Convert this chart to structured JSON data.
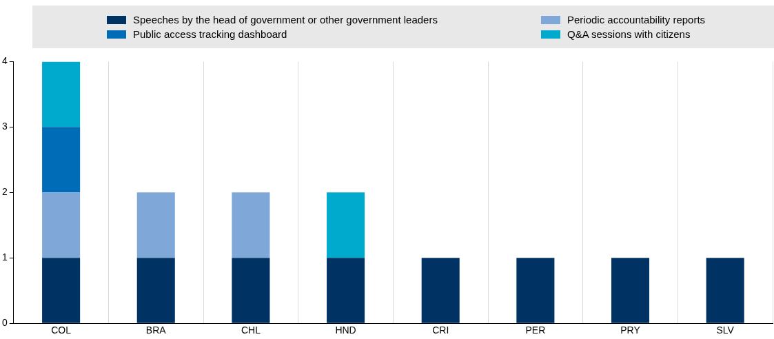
{
  "chart_data": {
    "type": "bar",
    "stacked": true,
    "categories": [
      "COL",
      "BRA",
      "CHL",
      "HND",
      "CRI",
      "PER",
      "PRY",
      "SLV"
    ],
    "series": [
      {
        "name": "Speeches by the head of government or other government leaders",
        "color": "#003264",
        "values": [
          1,
          1,
          1,
          1,
          1,
          1,
          1,
          1
        ]
      },
      {
        "name": "Periodic accountability reports",
        "color": "#7fa8d9",
        "values": [
          1,
          1,
          1,
          0,
          0,
          0,
          0,
          0
        ]
      },
      {
        "name": "Public access tracking dashboard",
        "color": "#006bb6",
        "values": [
          1,
          0,
          0,
          0,
          0,
          0,
          0,
          0
        ]
      },
      {
        "name": "Q&A sessions with citizens",
        "color": "#00aacc",
        "values": [
          1,
          0,
          0,
          1,
          0,
          0,
          0,
          0
        ]
      }
    ],
    "ylim": [
      0,
      4
    ],
    "yticks": [
      0,
      1,
      2,
      3,
      4
    ],
    "grid": "x",
    "legend": "top"
  }
}
